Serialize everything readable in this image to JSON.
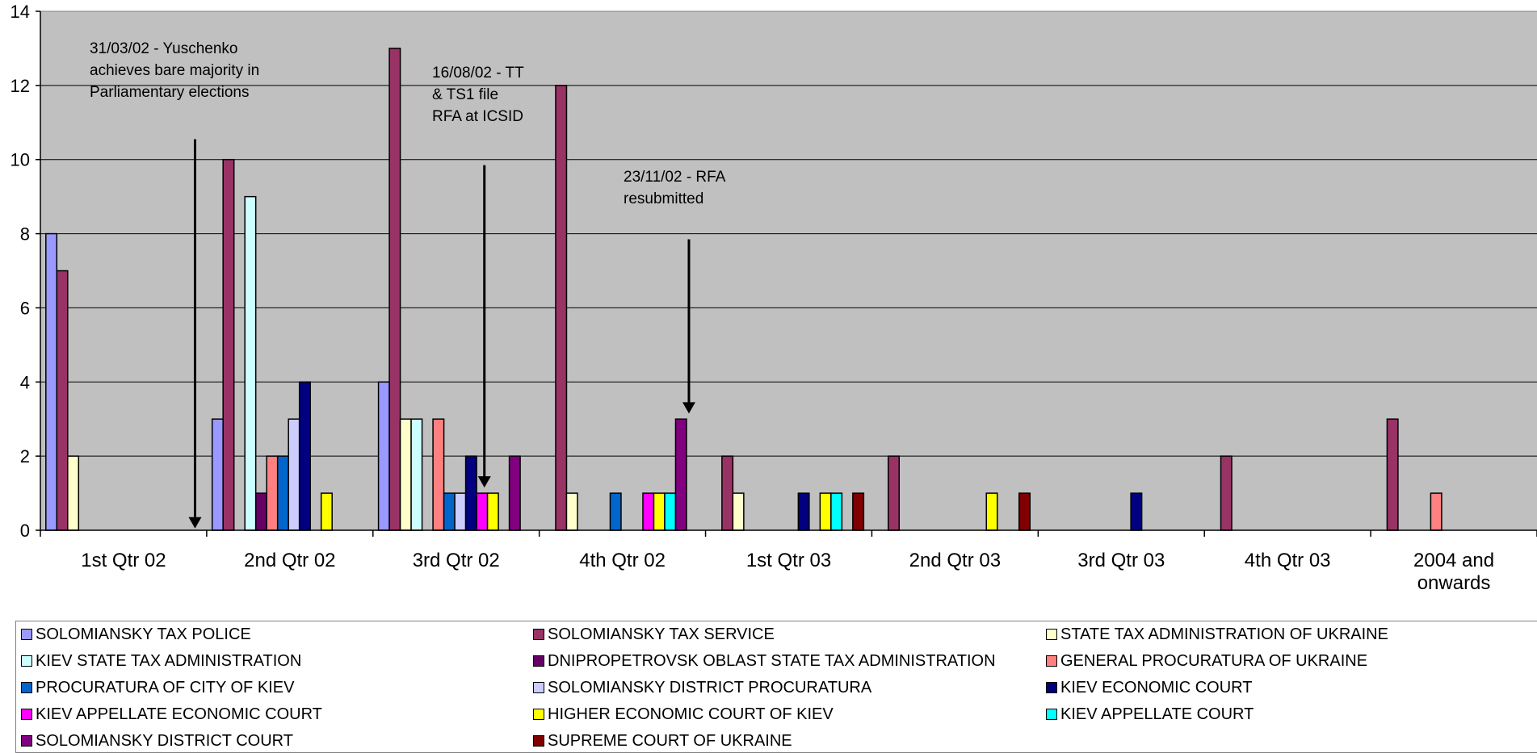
{
  "chart_data": {
    "type": "bar",
    "ylim": [
      0,
      14
    ],
    "yticks": [
      "0",
      "2",
      "4",
      "6",
      "8",
      "10",
      "12",
      "14"
    ],
    "plot_background": "#C0C0C0",
    "grid": true,
    "legend_position": "bottom",
    "categories": [
      "1st Qtr 02",
      "2nd Qtr 02",
      "3rd Qtr 02",
      "4th Qtr 02",
      "1st Qtr 03",
      "2nd Qtr 03",
      "3rd Qtr 03",
      "4th Qtr 03",
      "2004 and onwards"
    ],
    "series": [
      {
        "name": "SOLOMIANSKY TAX POLICE",
        "color": "#9999FF",
        "values": [
          8,
          3,
          4,
          0,
          0,
          0,
          0,
          0,
          0
        ]
      },
      {
        "name": "SOLOMIANSKY TAX SERVICE",
        "color": "#993366",
        "values": [
          7,
          10,
          13,
          12,
          2,
          2,
          0,
          2,
          3
        ]
      },
      {
        "name": "STATE TAX ADMINISTRATION OF UKRAINE",
        "color": "#FFFFCC",
        "values": [
          2,
          0,
          3,
          1,
          1,
          0,
          0,
          0,
          0
        ]
      },
      {
        "name": "KIEV STATE TAX ADMINISTRATION",
        "color": "#CCFFFF",
        "values": [
          0,
          9,
          3,
          0,
          0,
          0,
          0,
          0,
          0
        ]
      },
      {
        "name": "DNIPROPETROVSK OBLAST STATE TAX ADMINISTRATION",
        "color": "#660066",
        "values": [
          0,
          1,
          0,
          0,
          0,
          0,
          0,
          0,
          0
        ]
      },
      {
        "name": "GENERAL PROCURATURA OF UKRAINE",
        "color": "#FF8080",
        "values": [
          0,
          2,
          3,
          0,
          0,
          0,
          0,
          0,
          1
        ]
      },
      {
        "name": "PROCURATURA OF CITY OF KIEV",
        "color": "#0066CC",
        "values": [
          0,
          2,
          1,
          1,
          0,
          0,
          0,
          0,
          0
        ]
      },
      {
        "name": "SOLOMIANSKY DISTRICT PROCURATURA",
        "color": "#CCCCFF",
        "values": [
          0,
          3,
          1,
          0,
          0,
          0,
          0,
          0,
          0
        ]
      },
      {
        "name": "KIEV ECONOMIC COURT",
        "color": "#000080",
        "values": [
          0,
          4,
          2,
          0,
          1,
          0,
          1,
          0,
          0
        ]
      },
      {
        "name": "KIEV APPELLATE ECONOMIC COURT",
        "color": "#FF00FF",
        "values": [
          0,
          0,
          1,
          1,
          0,
          0,
          0,
          0,
          0
        ]
      },
      {
        "name": "HIGHER ECONOMIC COURT OF KIEV",
        "color": "#FFFF00",
        "values": [
          0,
          1,
          1,
          1,
          1,
          1,
          0,
          0,
          0
        ]
      },
      {
        "name": "KIEV APPELLATE COURT",
        "color": "#00FFFF",
        "values": [
          0,
          0,
          0,
          1,
          1,
          0,
          0,
          0,
          0
        ]
      },
      {
        "name": "SOLOMIANSKY DISTRICT COURT",
        "color": "#800080",
        "values": [
          0,
          0,
          2,
          3,
          0,
          0,
          0,
          0,
          0
        ]
      },
      {
        "name": "SUPREME COURT OF UKRAINE",
        "color": "#800000",
        "values": [
          0,
          0,
          0,
          0,
          1,
          1,
          0,
          0,
          0
        ]
      }
    ],
    "annotations": [
      {
        "lines": [
          "31/03/02 - Yuschenko",
          "achieves bare majority in",
          "Parliamentary elections"
        ],
        "arrow_x": 0.93,
        "arrow_from_y": 10.55,
        "arrow_to_y": 0.05
      },
      {
        "lines": [
          "16/08/02 - TT",
          "& TS1 file",
          "RFA at ICSID"
        ],
        "arrow_x": 2.67,
        "arrow_from_y": 9.85,
        "arrow_to_y": 1.15
      },
      {
        "lines": [
          "23/11/02 - RFA",
          "resubmitted"
        ],
        "arrow_x": 3.9,
        "arrow_from_y": 7.85,
        "arrow_to_y": 3.15
      }
    ]
  }
}
